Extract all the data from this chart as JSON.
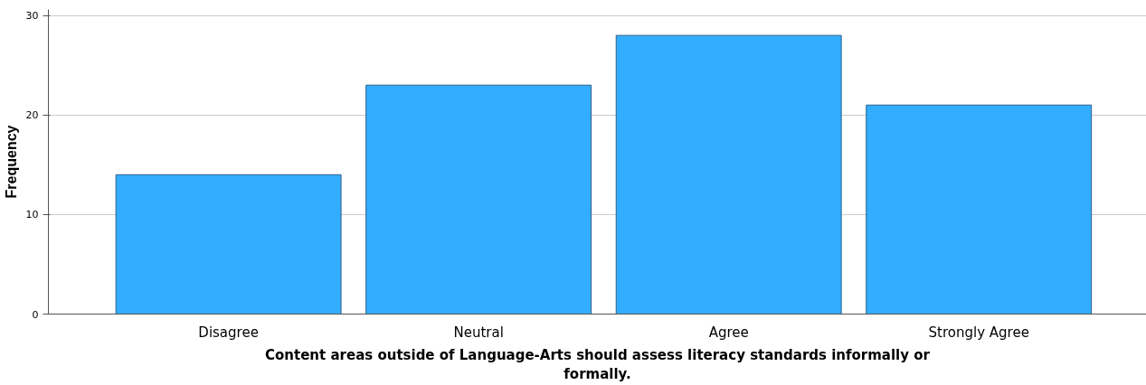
{
  "chart_data": {
    "type": "bar",
    "xlabel": "Content areas outside of Language-Arts should assess literacy standards informally or formally.",
    "ylabel": "Frequency",
    "categories": [
      "Disagree",
      "Neutral",
      "Agree",
      "Strongly Agree"
    ],
    "values": [
      14,
      23,
      28,
      21
    ],
    "color": "#33adff",
    "ylim": [
      0,
      30.6
    ],
    "yticks": [
      0,
      10,
      20,
      30
    ],
    "grid": "y"
  }
}
